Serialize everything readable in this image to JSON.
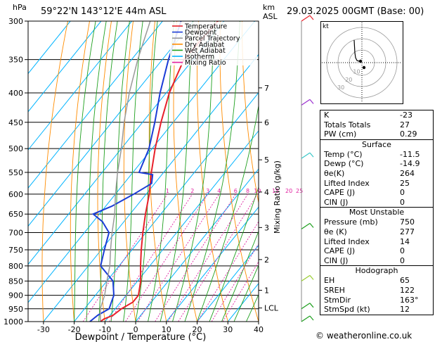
{
  "header": {
    "pressure_unit": "hPa",
    "location": "59°22'N 143°12'E 44m ASL",
    "alt_unit_top": "km",
    "alt_unit_bottom": "ASL",
    "datetime": "29.03.2025 00GMT (Base: 00)"
  },
  "chart_data": {
    "type": "skew-t log-p",
    "xlabel": "Dewpoint / Temperature (°C)",
    "ylabel": "hPa",
    "mixing_ratio_label": "Mixing Ratio (g/kg)",
    "xlim": [
      -35,
      40
    ],
    "ylim": [
      1000,
      300
    ],
    "x_ticks": [
      "-30",
      "-20",
      "-10",
      "0",
      "10",
      "20",
      "30",
      "40"
    ],
    "y_ticks": [
      300,
      350,
      400,
      450,
      500,
      550,
      600,
      650,
      700,
      750,
      800,
      850,
      900,
      950,
      1000
    ],
    "km_ticks": [
      {
        "label": "7",
        "p": 392
      },
      {
        "label": "6",
        "p": 450
      },
      {
        "label": "5",
        "p": 523
      },
      {
        "label": "4",
        "p": 595
      },
      {
        "label": "3",
        "p": 686
      },
      {
        "label": "2",
        "p": 780
      },
      {
        "label": "1",
        "p": 882
      },
      {
        "label": "LCL",
        "p": 947
      }
    ],
    "mixing_ratio_values": [
      "1",
      "2",
      "3",
      "4",
      "6",
      "8",
      "10",
      "15",
      "20",
      "25"
    ],
    "legend": {
      "position": "top-left",
      "entries": [
        {
          "label": "Temperature",
          "color": "#e8202a"
        },
        {
          "label": "Dewpoint",
          "color": "#1a3cd6"
        },
        {
          "label": "Parcel Trajectory",
          "color": "#999999"
        },
        {
          "label": "Dry Adiabat",
          "color": "#ff8c00"
        },
        {
          "label": "Wet Adiabat",
          "color": "#1fa01f"
        },
        {
          "label": "Isotherm",
          "color": "#00b4ff"
        },
        {
          "label": "Mixing Ratio",
          "color": "#e020a0"
        }
      ]
    },
    "series": [
      {
        "name": "Temperature",
        "color": "#e8202a",
        "points": [
          [
            1000,
            -11.5
          ],
          [
            990,
            -11
          ],
          [
            975,
            -9
          ],
          [
            950,
            -8
          ],
          [
            925,
            -6
          ],
          [
            900,
            -6
          ],
          [
            850,
            -9
          ],
          [
            800,
            -13
          ],
          [
            750,
            -17
          ],
          [
            700,
            -21
          ],
          [
            650,
            -25
          ],
          [
            600,
            -29
          ],
          [
            550,
            -34
          ],
          [
            500,
            -39
          ],
          [
            450,
            -44
          ],
          [
            400,
            -49
          ],
          [
            350,
            -53
          ],
          [
            300,
            -52
          ]
        ]
      },
      {
        "name": "Dewpoint",
        "color": "#1a3cd6",
        "points": [
          [
            1000,
            -14.9
          ],
          [
            975,
            -14
          ],
          [
            950,
            -12
          ],
          [
            925,
            -13
          ],
          [
            900,
            -14
          ],
          [
            850,
            -18
          ],
          [
            800,
            -26
          ],
          [
            750,
            -29
          ],
          [
            700,
            -32
          ],
          [
            670,
            -37
          ],
          [
            650,
            -42
          ],
          [
            630,
            -38
          ],
          [
            600,
            -34
          ],
          [
            575,
            -31
          ],
          [
            555,
            -33
          ],
          [
            550,
            -38
          ],
          [
            500,
            -41
          ],
          [
            450,
            -46
          ],
          [
            400,
            -52
          ],
          [
            350,
            -58
          ],
          [
            300,
            -64
          ]
        ]
      },
      {
        "name": "Parcel Trajectory",
        "color": "#999999",
        "points": [
          [
            1000,
            -11.5
          ],
          [
            947,
            -15
          ],
          [
            900,
            -17
          ],
          [
            850,
            -20
          ],
          [
            800,
            -23
          ],
          [
            750,
            -27
          ],
          [
            700,
            -31
          ],
          [
            650,
            -35
          ],
          [
            600,
            -40
          ],
          [
            550,
            -45
          ],
          [
            500,
            -50
          ],
          [
            450,
            -56
          ],
          [
            400,
            -62
          ],
          [
            350,
            -68
          ],
          [
            300,
            -74
          ]
        ]
      }
    ]
  },
  "hodograph": {
    "unit_label": "kt",
    "ring_labels": [
      "10",
      "20",
      "30"
    ]
  },
  "indices": [
    {
      "label": "K",
      "value": "-23"
    },
    {
      "label": "Totals Totals",
      "value": "27"
    },
    {
      "label": "PW (cm)",
      "value": "0.29"
    }
  ],
  "surface": {
    "title": "Surface",
    "rows": [
      {
        "label": "Temp (°C)",
        "value": "-11.5"
      },
      {
        "label": "Dewp (°C)",
        "value": "-14.9"
      },
      {
        "label": "θe(K)",
        "value": "264"
      },
      {
        "label": "Lifted Index",
        "value": "25"
      },
      {
        "label": "CAPE (J)",
        "value": "0"
      },
      {
        "label": "CIN (J)",
        "value": "0"
      }
    ]
  },
  "most_unstable": {
    "title": "Most Unstable",
    "rows": [
      {
        "label": "Pressure (mb)",
        "value": "750"
      },
      {
        "label": "θe (K)",
        "value": "277"
      },
      {
        "label": "Lifted Index",
        "value": "14"
      },
      {
        "label": "CAPE (J)",
        "value": "0"
      },
      {
        "label": "CIN (J)",
        "value": "0"
      }
    ]
  },
  "hodograph_table": {
    "title": "Hodograph",
    "rows": [
      {
        "label": "EH",
        "value": "65"
      },
      {
        "label": "SREH",
        "value": "122"
      },
      {
        "label": "StmDir",
        "value": "163°"
      },
      {
        "label": "StmSpd (kt)",
        "value": "12"
      }
    ]
  },
  "copyright": "© weatheronline.co.uk"
}
